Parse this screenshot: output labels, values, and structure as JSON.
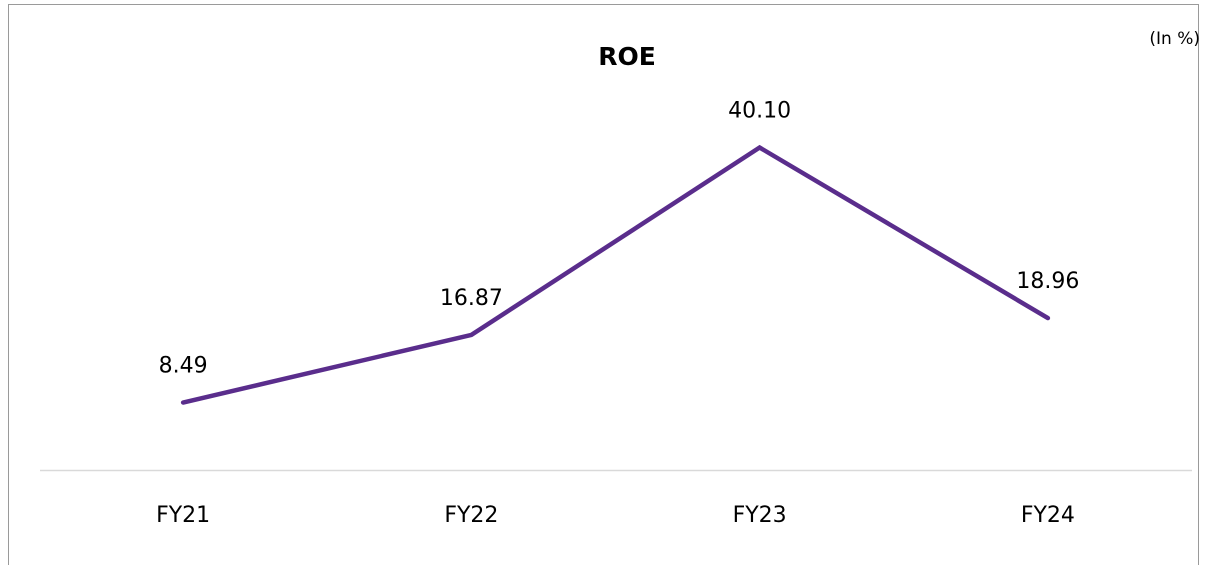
{
  "chart_data": {
    "type": "line",
    "title": "ROE",
    "unit_note": "(In %)",
    "categories": [
      "FY21",
      "FY22",
      "FY23",
      "FY24"
    ],
    "series": [
      {
        "name": "ROE",
        "color": "#5a2d8c",
        "values": [
          8.49,
          16.87,
          40.1,
          18.96
        ],
        "value_labels": [
          "8.49",
          "16.87",
          "40.10",
          "18.96"
        ]
      }
    ],
    "ylim": [
      0,
      45
    ]
  }
}
